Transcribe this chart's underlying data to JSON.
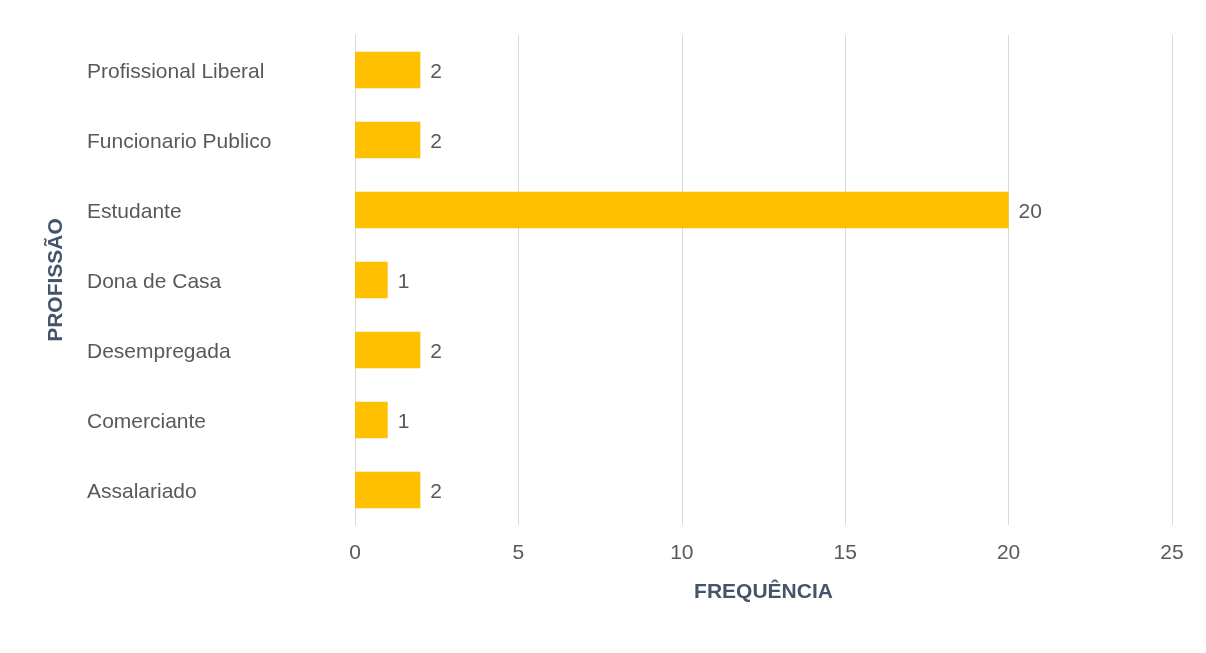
{
  "chart_data": {
    "type": "bar",
    "orientation": "horizontal",
    "xlabel": "FREQUÊNCIA",
    "ylabel": "PROFISSÃO",
    "categories": [
      "Profissional Liberal",
      "Funcionario Publico",
      "Estudante",
      "Dona de Casa",
      "Desempregada",
      "Comerciante",
      "Assalariado"
    ],
    "values": [
      2,
      2,
      20,
      1,
      2,
      1,
      2
    ],
    "color": "#ffc000",
    "xlim": [
      0,
      25
    ],
    "xticks": [
      0,
      5,
      10,
      15,
      20,
      25
    ],
    "grid": "x",
    "data_labels": true
  }
}
